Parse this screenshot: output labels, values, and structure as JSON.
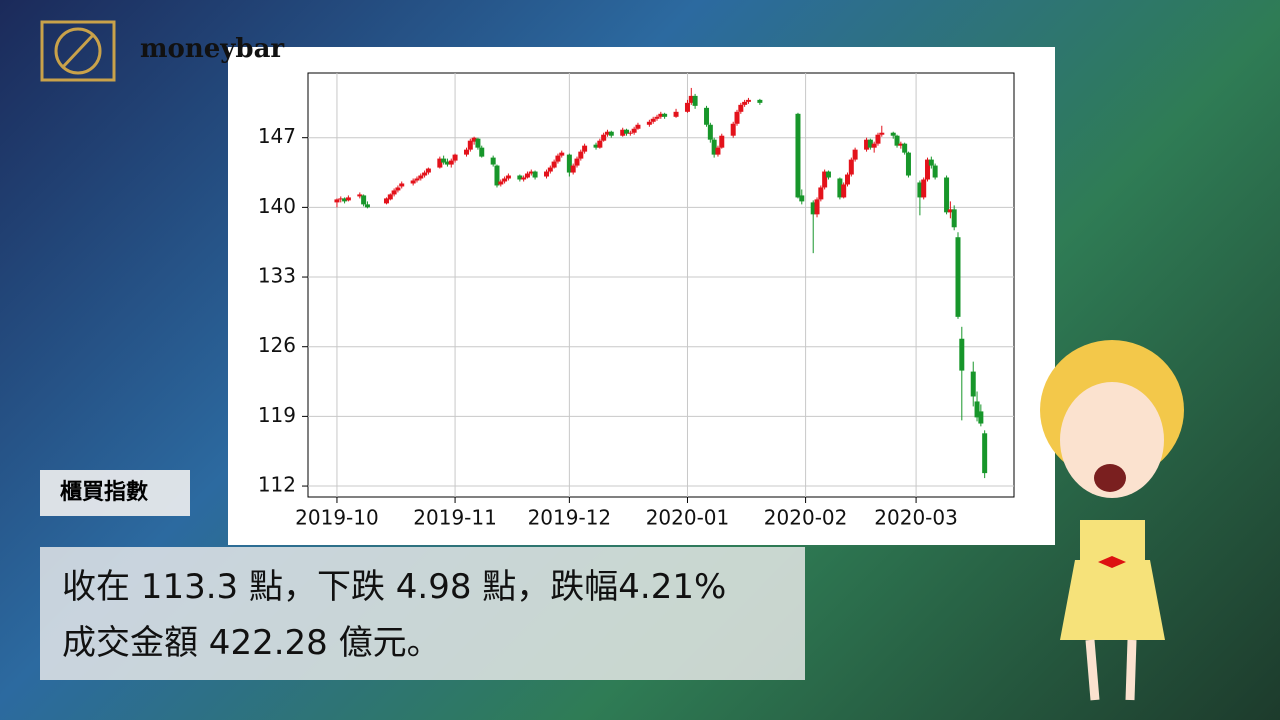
{
  "logo": "moneybar",
  "chart_data": {
    "type": "candlestick",
    "x": [
      0,
      1,
      2,
      3,
      6,
      7,
      8,
      13,
      14,
      15,
      16,
      17,
      20,
      21,
      22,
      23,
      24,
      27,
      28,
      29,
      30,
      31,
      34,
      35,
      36,
      37,
      38,
      41,
      42,
      43,
      44,
      45,
      48,
      49,
      50,
      51,
      52,
      55,
      56,
      57,
      58,
      59,
      61,
      62,
      63,
      64,
      65,
      68,
      69,
      70,
      71,
      72,
      75,
      76,
      77,
      78,
      79,
      82,
      83,
      84,
      85,
      86,
      89,
      92,
      93,
      94,
      97,
      98,
      99,
      100,
      101,
      104,
      105,
      106,
      107,
      108,
      111,
      121,
      122,
      125,
      126,
      127,
      128,
      129,
      132,
      133,
      134,
      135,
      136,
      139,
      140,
      141,
      142,
      143,
      146,
      147,
      148,
      149,
      150,
      153,
      154,
      155,
      156,
      157,
      160,
      161,
      162,
      163,
      164,
      167,
      168,
      169,
      170
    ],
    "open": [
      140.5,
      140.8,
      140.9,
      140.7,
      141.1,
      141.2,
      140.3,
      140.4,
      140.8,
      141.3,
      141.7,
      142.1,
      142.4,
      142.7,
      142.9,
      143.2,
      143.5,
      144.0,
      144.9,
      144.6,
      144.3,
      144.7,
      145.3,
      145.8,
      146.6,
      146.9,
      146.0,
      145.0,
      144.2,
      142.3,
      142.6,
      142.9,
      143.2,
      142.8,
      143.0,
      143.4,
      143.6,
      143.1,
      143.6,
      144.0,
      144.6,
      145.2,
      145.3,
      143.5,
      144.2,
      144.9,
      145.6,
      146.3,
      146.0,
      146.7,
      147.3,
      147.6,
      147.2,
      147.8,
      147.4,
      147.5,
      147.9,
      148.3,
      148.6,
      148.9,
      149.1,
      149.4,
      149.1,
      149.6,
      150.5,
      151.2,
      150.0,
      148.3,
      146.8,
      145.3,
      146.0,
      147.2,
      148.4,
      149.6,
      150.3,
      150.6,
      150.8,
      149.4,
      141.2,
      140.5,
      139.3,
      140.8,
      142.0,
      143.6,
      142.9,
      141.0,
      142.3,
      143.3,
      144.8,
      145.8,
      146.8,
      146.0,
      146.4,
      147.3,
      147.5,
      147.2,
      146.2,
      146.4,
      145.5,
      142.5,
      141.0,
      142.8,
      144.8,
      144.2,
      143.0,
      139.5,
      139.8,
      137.0,
      126.8,
      123.5,
      120.5,
      119.5,
      117.3
    ],
    "high": [
      140.9,
      141.1,
      141.0,
      141.2,
      141.5,
      141.3,
      140.6,
      141.0,
      141.4,
      141.9,
      142.2,
      142.6,
      142.9,
      143.1,
      143.4,
      143.7,
      144.0,
      145.1,
      145.2,
      144.9,
      144.9,
      145.4,
      146.0,
      146.9,
      147.1,
      147.0,
      146.2,
      145.2,
      144.3,
      142.8,
      143.1,
      143.4,
      143.3,
      143.2,
      143.6,
      143.8,
      143.7,
      143.8,
      144.2,
      144.8,
      145.4,
      145.7,
      145.4,
      144.4,
      145.1,
      145.8,
      146.4,
      146.5,
      146.9,
      147.5,
      147.8,
      147.7,
      148.0,
      147.9,
      147.7,
      148.1,
      148.5,
      148.8,
      149.1,
      149.3,
      149.6,
      149.5,
      149.9,
      150.8,
      152.0,
      151.4,
      150.2,
      148.5,
      147.0,
      146.2,
      147.4,
      148.6,
      149.8,
      150.5,
      150.8,
      151.0,
      150.9,
      149.5,
      141.8,
      140.7,
      141.0,
      142.2,
      143.8,
      143.7,
      143.0,
      142.5,
      143.5,
      145.0,
      146.0,
      147.0,
      146.9,
      146.6,
      147.5,
      148.2,
      147.6,
      147.3,
      146.6,
      146.5,
      145.6,
      142.7,
      143.0,
      145.0,
      145.1,
      144.4,
      143.2,
      140.6,
      140.2,
      137.5,
      128.0,
      124.5,
      121.5,
      120.2,
      117.6
    ],
    "low": [
      140.0,
      140.5,
      140.4,
      140.6,
      140.9,
      140.1,
      139.9,
      140.3,
      140.7,
      141.1,
      141.5,
      141.9,
      142.2,
      142.5,
      142.7,
      143.0,
      143.3,
      143.9,
      144.3,
      144.1,
      144.0,
      144.5,
      145.1,
      145.6,
      146.3,
      145.8,
      145.0,
      144.1,
      142.0,
      142.1,
      142.4,
      142.7,
      142.6,
      142.6,
      142.9,
      143.2,
      142.8,
      142.9,
      143.4,
      143.9,
      144.4,
      145.0,
      143.1,
      143.3,
      144.0,
      144.7,
      145.4,
      145.8,
      145.9,
      146.6,
      147.1,
      147.0,
      147.1,
      147.2,
      147.2,
      147.3,
      147.8,
      148.1,
      148.4,
      148.7,
      148.9,
      148.9,
      149.0,
      149.5,
      150.3,
      149.9,
      148.1,
      146.5,
      145.0,
      145.1,
      145.9,
      147.0,
      148.2,
      149.4,
      150.1,
      150.4,
      150.3,
      140.9,
      140.3,
      135.4,
      139.0,
      140.6,
      141.8,
      142.8,
      140.8,
      140.9,
      142.1,
      143.1,
      144.6,
      145.6,
      145.8,
      145.5,
      146.2,
      147.1,
      146.9,
      146.0,
      145.9,
      145.3,
      143.0,
      139.2,
      140.8,
      142.6,
      143.9,
      142.8,
      139.3,
      138.9,
      137.7,
      128.8,
      118.6,
      120.0,
      118.5,
      118.0,
      112.8
    ],
    "close": [
      140.8,
      140.9,
      140.6,
      141.0,
      141.3,
      140.3,
      140.0,
      140.9,
      141.3,
      141.7,
      142.0,
      142.4,
      142.7,
      142.9,
      143.2,
      143.5,
      143.9,
      144.9,
      144.5,
      144.3,
      144.7,
      145.3,
      145.8,
      146.7,
      147.0,
      146.0,
      145.1,
      144.3,
      142.2,
      142.6,
      142.9,
      143.2,
      142.8,
      143.0,
      143.4,
      143.6,
      143.0,
      143.6,
      144.0,
      144.6,
      145.2,
      145.5,
      143.5,
      144.2,
      144.9,
      145.6,
      146.2,
      146.0,
      146.7,
      147.3,
      147.6,
      147.2,
      147.8,
      147.4,
      147.5,
      147.9,
      148.3,
      148.6,
      148.9,
      149.1,
      149.4,
      149.1,
      149.6,
      150.5,
      151.2,
      150.2,
      148.3,
      146.8,
      145.3,
      146.0,
      147.2,
      148.4,
      149.6,
      150.3,
      150.6,
      150.8,
      150.5,
      141.0,
      140.6,
      139.3,
      140.8,
      142.0,
      143.6,
      143.0,
      141.0,
      142.3,
      143.3,
      144.8,
      145.8,
      146.8,
      146.0,
      146.4,
      147.3,
      147.5,
      147.2,
      146.2,
      146.4,
      145.5,
      143.2,
      141.0,
      142.8,
      144.8,
      144.2,
      143.0,
      139.5,
      139.8,
      138.0,
      129.0,
      123.6,
      121.0,
      118.9,
      118.28,
      113.3
    ],
    "up_color": "#e3121b",
    "down_color": "#17962a",
    "xlim": [
      -7.6,
      177.7
    ],
    "xticks": [
      {
        "value": 0,
        "label": "2019-10"
      },
      {
        "value": 31,
        "label": "2019-11"
      },
      {
        "value": 61,
        "label": "2019-12"
      },
      {
        "value": 92,
        "label": "2020-01"
      },
      {
        "value": 123,
        "label": "2020-02"
      },
      {
        "value": 152,
        "label": "2020-03"
      }
    ],
    "ylim": [
      110.9,
      153.5
    ],
    "yticks": [
      112,
      119,
      126,
      133,
      140,
      147
    ],
    "grid": true
  },
  "caption": {
    "label": "櫃買指數",
    "lines": [
      "收在 113.3 點，下跌 4.98 點，跌幅4.21%",
      "成交金額 422.28 億元。"
    ]
  }
}
